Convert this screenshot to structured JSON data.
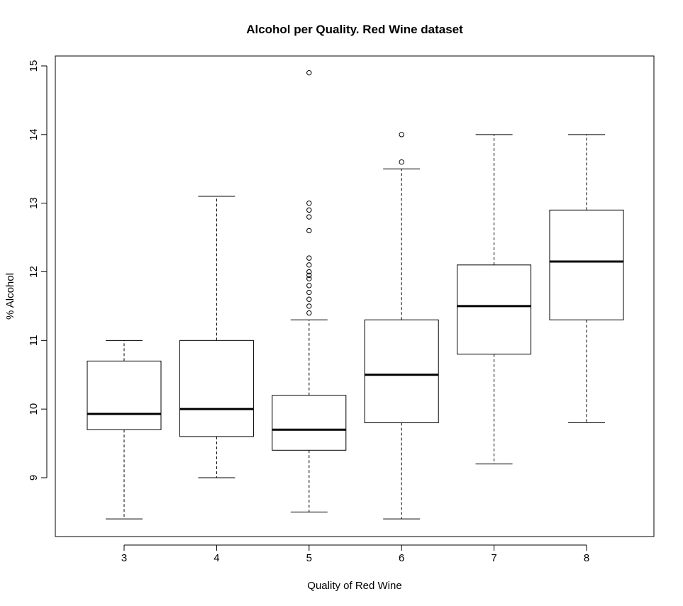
{
  "chart_data": {
    "type": "boxplot",
    "title": "Alcohol per Quality. Red Wine dataset",
    "xlabel": "Quality of Red Wine",
    "ylabel": "% Alcohol",
    "ylim": [
      8.2,
      15.2
    ],
    "yticks": [
      9,
      10,
      11,
      12,
      13,
      14,
      15
    ],
    "categories": [
      "3",
      "4",
      "5",
      "6",
      "7",
      "8"
    ],
    "boxes": [
      {
        "category": "3",
        "whisker_low": 8.4,
        "q1": 9.7,
        "median": 9.93,
        "q3": 10.7,
        "whisker_high": 11.0,
        "outliers": []
      },
      {
        "category": "4",
        "whisker_low": 9.0,
        "q1": 9.6,
        "median": 10.0,
        "q3": 11.0,
        "whisker_high": 13.1,
        "outliers": []
      },
      {
        "category": "5",
        "whisker_low": 8.5,
        "q1": 9.4,
        "median": 9.7,
        "q3": 10.2,
        "whisker_high": 11.3,
        "outliers": [
          11.4,
          11.5,
          11.6,
          11.7,
          11.8,
          11.9,
          11.95,
          12.0,
          12.1,
          12.2,
          12.6,
          12.8,
          12.9,
          13.0,
          14.9
        ]
      },
      {
        "category": "6",
        "whisker_low": 8.4,
        "q1": 9.8,
        "median": 10.5,
        "q3": 11.3,
        "whisker_high": 13.5,
        "outliers": [
          13.6,
          14.0
        ]
      },
      {
        "category": "7",
        "whisker_low": 9.2,
        "q1": 10.8,
        "median": 11.5,
        "q3": 12.1,
        "whisker_high": 14.0,
        "outliers": []
      },
      {
        "category": "8",
        "whisker_low": 9.8,
        "q1": 11.3,
        "median": 12.15,
        "q3": 12.9,
        "whisker_high": 14.0,
        "outliers": []
      }
    ],
    "grid": false,
    "legend": "none"
  }
}
